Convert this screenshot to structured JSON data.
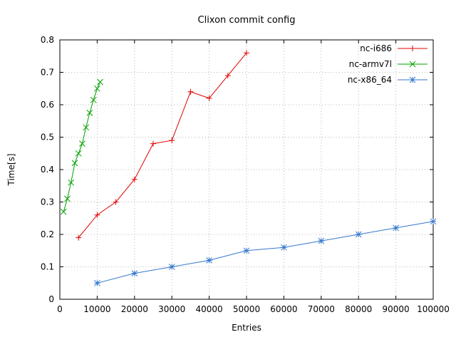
{
  "chart_data": {
    "type": "line",
    "title": "Clixon commit config",
    "xlabel": "Entries",
    "ylabel": "Time[s]",
    "xlim": [
      0,
      100000
    ],
    "ylim": [
      0,
      0.8
    ],
    "xticks": [
      0,
      10000,
      20000,
      30000,
      40000,
      50000,
      60000,
      70000,
      80000,
      90000,
      100000
    ],
    "yticks": [
      0,
      0.1,
      0.2,
      0.3,
      0.4,
      0.5,
      0.6,
      0.7,
      0.8
    ],
    "grid": true,
    "grid_color": "#b8b8b8",
    "border_color": "#000000",
    "legend_position": "top-right-inside",
    "series": [
      {
        "name": "nc-i686",
        "color": "#e00000",
        "marker": "plus",
        "x": [
          5000,
          10000,
          15000,
          20000,
          25000,
          30000,
          35000,
          40000,
          45000,
          50000
        ],
        "y": [
          0.19,
          0.26,
          0.3,
          0.37,
          0.48,
          0.49,
          0.64,
          0.62,
          0.69,
          0.76
        ]
      },
      {
        "name": "nc-armv7l",
        "color": "#00a000",
        "marker": "cross",
        "x": [
          1000,
          2000,
          3000,
          4000,
          5000,
          6000,
          7000,
          8000,
          9000,
          10000,
          10800
        ],
        "y": [
          0.27,
          0.31,
          0.36,
          0.42,
          0.45,
          0.48,
          0.53,
          0.575,
          0.615,
          0.65,
          0.67
        ]
      },
      {
        "name": "nc-x86_64",
        "color": "#3377cc",
        "marker": "asterisk",
        "x": [
          10000,
          20000,
          30000,
          40000,
          50000,
          60000,
          70000,
          80000,
          90000,
          100000
        ],
        "y": [
          0.05,
          0.08,
          0.1,
          0.12,
          0.15,
          0.16,
          0.18,
          0.2,
          0.22,
          0.24
        ]
      }
    ]
  }
}
